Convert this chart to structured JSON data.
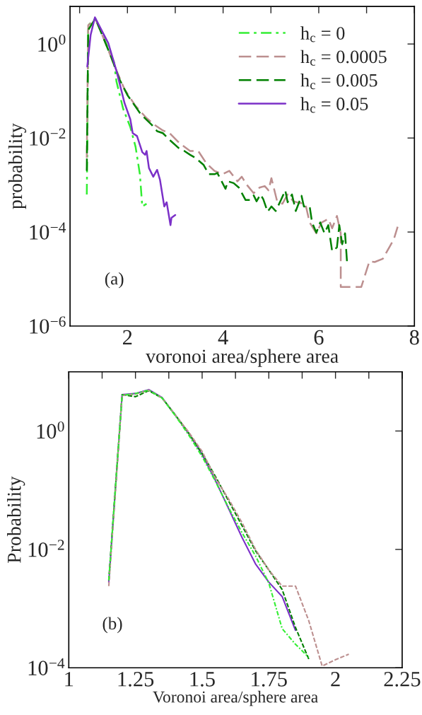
{
  "chart_data": [
    {
      "type": "line",
      "xlabel": "voronoi area/sphere area",
      "ylabel": "probability",
      "log": "y",
      "grid": false,
      "legend": "top right",
      "xlim": [
        0.8,
        8
      ],
      "ylim": [
        1e-06,
        6.3
      ],
      "xticks": [
        {
          "value": 1,
          "label": null
        },
        2,
        {
          "value": 3,
          "label": null
        },
        4,
        {
          "value": 5,
          "label": null
        },
        6,
        {
          "value": 7,
          "label": null
        },
        8
      ],
      "yticks": [
        {
          "value": 1e-06,
          "label": "10$^{−6}$"
        },
        {
          "value": 0.0001,
          "label": "10$^{−4}$"
        },
        {
          "value": 0.01,
          "label": "10$^{−2}$"
        },
        {
          "value": 1,
          "label": "10$^{0}$"
        }
      ],
      "annotations": [
        "(a)"
      ],
      "series": [
        {
          "name": "h$_{c}$ = 0",
          "color": "#33ee33",
          "line_style": "dashdot",
          "x": [
            1.15,
            1.16,
            1.18,
            1.33,
            1.72,
            1.77,
            1.91,
            2.06,
            2.17,
            2.26,
            2.31,
            2.4
          ],
          "values": [
            0.00063,
            0.005,
            2.5,
            3.5,
            0.41,
            0.16,
            0.042,
            0.017,
            0.0065,
            0.0017,
            0.00035,
            0.0004
          ]
        },
        {
          "name": "h$_{c}$ = 0.0005",
          "color": "#bc8f8f",
          "line_style": "dashed",
          "x": [
            1.15,
            1.18,
            1.33,
            1.52,
            1.72,
            1.94,
            2.17,
            2.4,
            2.57,
            2.74,
            2.88,
            3.08,
            3.31,
            3.48,
            3.65,
            3.82,
            3.99,
            4.13,
            4.3,
            4.39,
            4.5,
            4.64,
            4.76,
            4.87,
            4.95,
            5.01,
            5.13,
            5.24,
            5.35,
            5.47,
            5.58,
            5.72,
            5.81,
            5.95,
            6.06,
            6.2,
            6.28,
            6.38,
            6.46,
            6.46,
            6.66,
            6.89,
            7.06,
            7.17,
            7.34,
            7.57,
            7.65
          ],
          "values": [
            0.0038,
            2.5,
            3.4,
            1.2,
            0.36,
            0.108,
            0.048,
            0.0265,
            0.019,
            0.0145,
            0.0127,
            0.0079,
            0.0053,
            0.0053,
            0.0029,
            0.002,
            0.0017,
            0.002,
            0.0012,
            0.0015,
            0.001,
            0.00067,
            0.00088,
            0.00095,
            0.00077,
            0.0014,
            0.00045,
            0.0004,
            0.00063,
            0.00045,
            0.00042,
            0.0004,
            0.00016,
            9.4e-05,
            0.00016,
            0.00019,
            0.00012,
            0.00022,
            9.4e-05,
            6.8e-06,
            6.8e-06,
            6.8e-06,
            2.4e-05,
            2.3e-05,
            2.7e-05,
            7e-05,
            0.00013
          ]
        },
        {
          "name": "h$_{c}$ = 0.005",
          "color": "#008000",
          "line_style": "dashed",
          "x": [
            1.15,
            1.18,
            1.33,
            1.66,
            1.83,
            2.0,
            2.28,
            2.51,
            2.62,
            2.74,
            2.91,
            3.08,
            3.19,
            3.31,
            3.42,
            3.59,
            3.7,
            3.82,
            3.88,
            4.05,
            4.1,
            4.22,
            4.33,
            4.47,
            4.56,
            4.64,
            4.7,
            4.78,
            4.84,
            4.93,
            5.01,
            5.1,
            5.21,
            5.3,
            5.35,
            5.44,
            5.52,
            5.64,
            5.69,
            5.81,
            5.86,
            5.95,
            6.03,
            6.12,
            6.2,
            6.28,
            6.38,
            6.43,
            6.49,
            6.55,
            6.59
          ],
          "values": [
            0.002,
            2.0,
            3.5,
            0.53,
            0.18,
            0.082,
            0.032,
            0.019,
            0.014,
            0.0127,
            0.0086,
            0.006,
            0.0053,
            0.0044,
            0.0038,
            0.0027,
            0.0017,
            0.0017,
            0.0018,
            0.00083,
            0.0012,
            0.0011,
            0.00088,
            0.00048,
            0.00048,
            0.0006,
            0.00045,
            0.00063,
            0.0005,
            0.00027,
            0.00035,
            0.00028,
            0.00048,
            0.00077,
            0.00043,
            0.00063,
            0.00028,
            0.00059,
            0.00035,
            0.00035,
            0.00016,
            9.7e-05,
            0.00016,
            9.4e-05,
            0.00014,
            3.9e-05,
            4.7e-05,
            0.00014,
            5.5e-05,
            9.4e-05,
            2.4e-05
          ]
        },
        {
          "name": "h$_{c}$ = 0.05",
          "color": "#7b30c8",
          "line_style": "solid",
          "x": [
            1.16,
            1.23,
            1.32,
            1.6,
            1.77,
            1.94,
            2.06,
            2.11,
            2.2,
            2.31,
            2.37,
            2.4,
            2.45,
            2.54,
            2.62,
            2.68,
            2.77,
            2.82,
            2.9,
            2.92,
            3.0
          ],
          "values": [
            0.33,
            1.55,
            3.7,
            1.04,
            0.27,
            0.055,
            0.025,
            0.0127,
            0.011,
            0.005,
            0.0044,
            0.0053,
            0.0023,
            0.0015,
            0.0021,
            0.0013,
            0.00035,
            0.00043,
            0.00014,
            0.0002,
            0.00023
          ]
        }
      ]
    },
    {
      "type": "line",
      "xlabel": "Voronoi area/sphere area",
      "ylabel": "Probability",
      "log": "y",
      "grid": false,
      "xlim": [
        1,
        2.25
      ],
      "ylim": [
        0.0001,
        10
      ],
      "xticks": [
        1,
        {
          "value": 1.125,
          "label": null
        },
        1.25,
        {
          "value": 1.375,
          "label": null
        },
        1.5,
        {
          "value": 1.625,
          "label": null
        },
        1.75,
        {
          "value": 1.875,
          "label": null
        },
        2,
        {
          "value": 2.125,
          "label": null
        },
        2.25
      ],
      "yticks": [
        {
          "value": 0.0001,
          "label": "10$^{−4}$"
        },
        {
          "value": 0.01,
          "label": "10$^{−2}$"
        },
        {
          "value": 1,
          "label": "10$^{0}$"
        }
      ],
      "annotations": [
        "(b)"
      ],
      "series": [
        {
          "color": "#33ee33",
          "line_style": "dashdot",
          "x": [
            1.15,
            1.2,
            1.25,
            1.3,
            1.35,
            1.4,
            1.45,
            1.5,
            1.55,
            1.6,
            1.65,
            1.7,
            1.75,
            1.8,
            1.85,
            1.9
          ],
          "values": [
            0.003,
            4.0,
            4.3,
            4.9,
            3.6,
            1.8,
            0.85,
            0.37,
            0.14,
            0.05,
            0.019,
            0.0078,
            0.0027,
            0.00046,
            0.00025,
            0.00015
          ]
        },
        {
          "color": "#bc8f8f",
          "line_style": "dashed",
          "x": [
            1.15,
            1.2,
            1.25,
            1.3,
            1.35,
            1.4,
            1.45,
            1.5,
            1.55,
            1.6,
            1.65,
            1.7,
            1.75,
            1.8,
            1.85,
            1.9,
            1.95,
            2.0,
            2.05
          ],
          "values": [
            0.0024,
            4.0,
            4.2,
            4.9,
            3.6,
            1.85,
            0.95,
            0.45,
            0.16,
            0.07,
            0.028,
            0.01,
            0.0045,
            0.0024,
            0.0024,
            0.00062,
            0.000107,
            0.000137,
            0.00017
          ]
        },
        {
          "color": "#008000",
          "line_style": "dashed",
          "x": [
            1.15,
            1.2,
            1.25,
            1.3,
            1.35,
            1.4,
            1.45,
            1.5,
            1.55,
            1.6,
            1.65,
            1.7,
            1.75,
            1.8,
            1.85,
            1.9
          ],
          "values": [
            0.003,
            4.1,
            3.8,
            4.8,
            3.6,
            1.85,
            0.92,
            0.42,
            0.17,
            0.065,
            0.025,
            0.0095,
            0.0045,
            0.0021,
            0.00048,
            0.00014
          ]
        },
        {
          "color": "#7b30c8",
          "line_style": "solid",
          "x": [
            1.15,
            1.2,
            1.25,
            1.3,
            1.35,
            1.4,
            1.45,
            1.5,
            1.55,
            1.6,
            1.65,
            1.7,
            1.75,
            1.8,
            1.85
          ],
          "values": [
            0.0028,
            4.1,
            4.3,
            5.0,
            3.66,
            1.83,
            0.9,
            0.4,
            0.146,
            0.048,
            0.0158,
            0.0057,
            0.0028,
            0.0016,
            0.00043
          ]
        }
      ]
    }
  ]
}
